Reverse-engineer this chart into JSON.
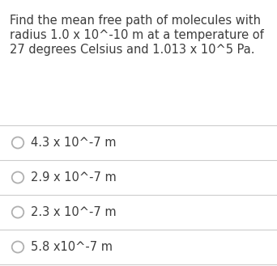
{
  "question_lines": [
    "Find the mean free path of molecules with",
    "radius 1.0 x 10^-10 m at a temperature of",
    "27 degrees Celsius and 1.013 x 10^5 Pa."
  ],
  "options": [
    "4.3 x 10^-7 m",
    "2.9 x 10^-7 m",
    "2.3 x 10^-7 m",
    "5.8 x10^-7 m"
  ],
  "bg_color": "#ffffff",
  "text_color": "#3c3c3c",
  "question_fontsize": 10.5,
  "option_fontsize": 10.5,
  "circle_color": "#b0b0b0",
  "line_color": "#cccccc",
  "fig_width": 3.42,
  "fig_height": 3.29,
  "dpi": 100
}
